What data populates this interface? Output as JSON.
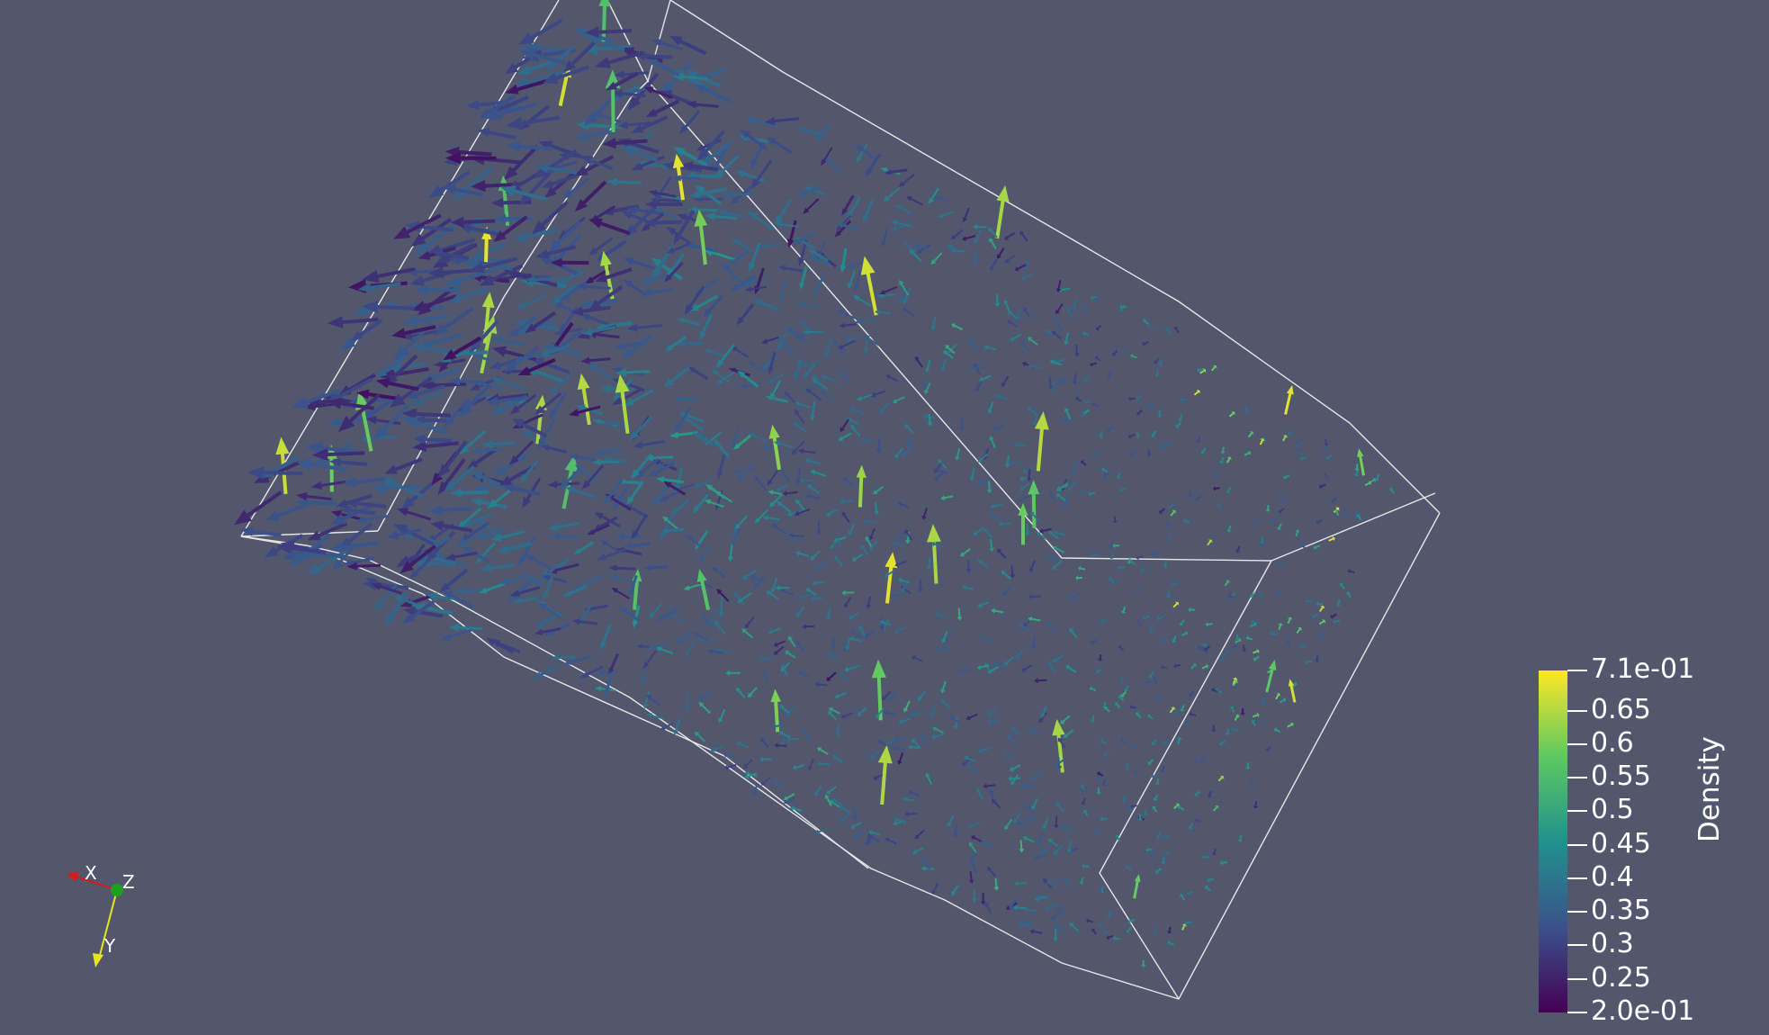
{
  "render_view": {
    "background": "#52576e",
    "outline_color": "#e6e6e6",
    "glyph_type": "arrow"
  },
  "scalar_bar": {
    "title": "Density",
    "range": [
      0.2,
      0.71
    ],
    "colormap": "viridis",
    "colors": [
      "#440154",
      "#3b528b",
      "#21918c",
      "#5ec962",
      "#fde725"
    ],
    "labels": [
      "7.1e-01",
      "0.65",
      "0.6",
      "0.55",
      "0.5",
      "0.45",
      "0.4",
      "0.35",
      "0.3",
      "0.25",
      "2.0e-01"
    ],
    "label_values": [
      0.71,
      0.65,
      0.6,
      0.55,
      0.5,
      0.45,
      0.4,
      0.35,
      0.3,
      0.25,
      0.2
    ]
  },
  "orientation_axes": {
    "x": {
      "label": "X",
      "color": "#d41c1c"
    },
    "y": {
      "label": "Y",
      "color": "#e6e61a"
    },
    "z": {
      "label": "Z",
      "color": "#1aa31a"
    }
  }
}
